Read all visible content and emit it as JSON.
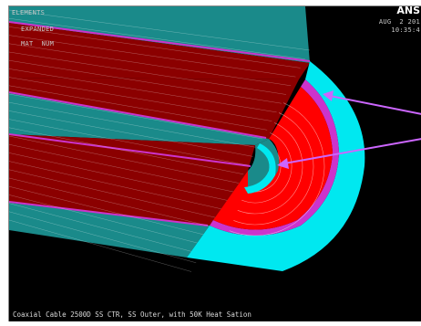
{
  "legend": {
    "lines": [
      "ELEMENTS",
      "EXPANDED",
      "MAT  NUM"
    ]
  },
  "stamp": {
    "logo": "ANS",
    "date": "AUG  2 201",
    "time": "10:35:4"
  },
  "caption": "Coaxial Cable 2500D SS CTR, SS Outer, with 50K Heat Sation",
  "colors": {
    "background": "#000000",
    "teal_sheath": "#1a8a8a",
    "red_core": "#990000",
    "red_bright": "#ff0000",
    "cyan_cap": "#00e8f0",
    "magenta_layer": "#cc33cc",
    "arrow": "#cc66ff",
    "mesh_line": "#ffffff"
  }
}
